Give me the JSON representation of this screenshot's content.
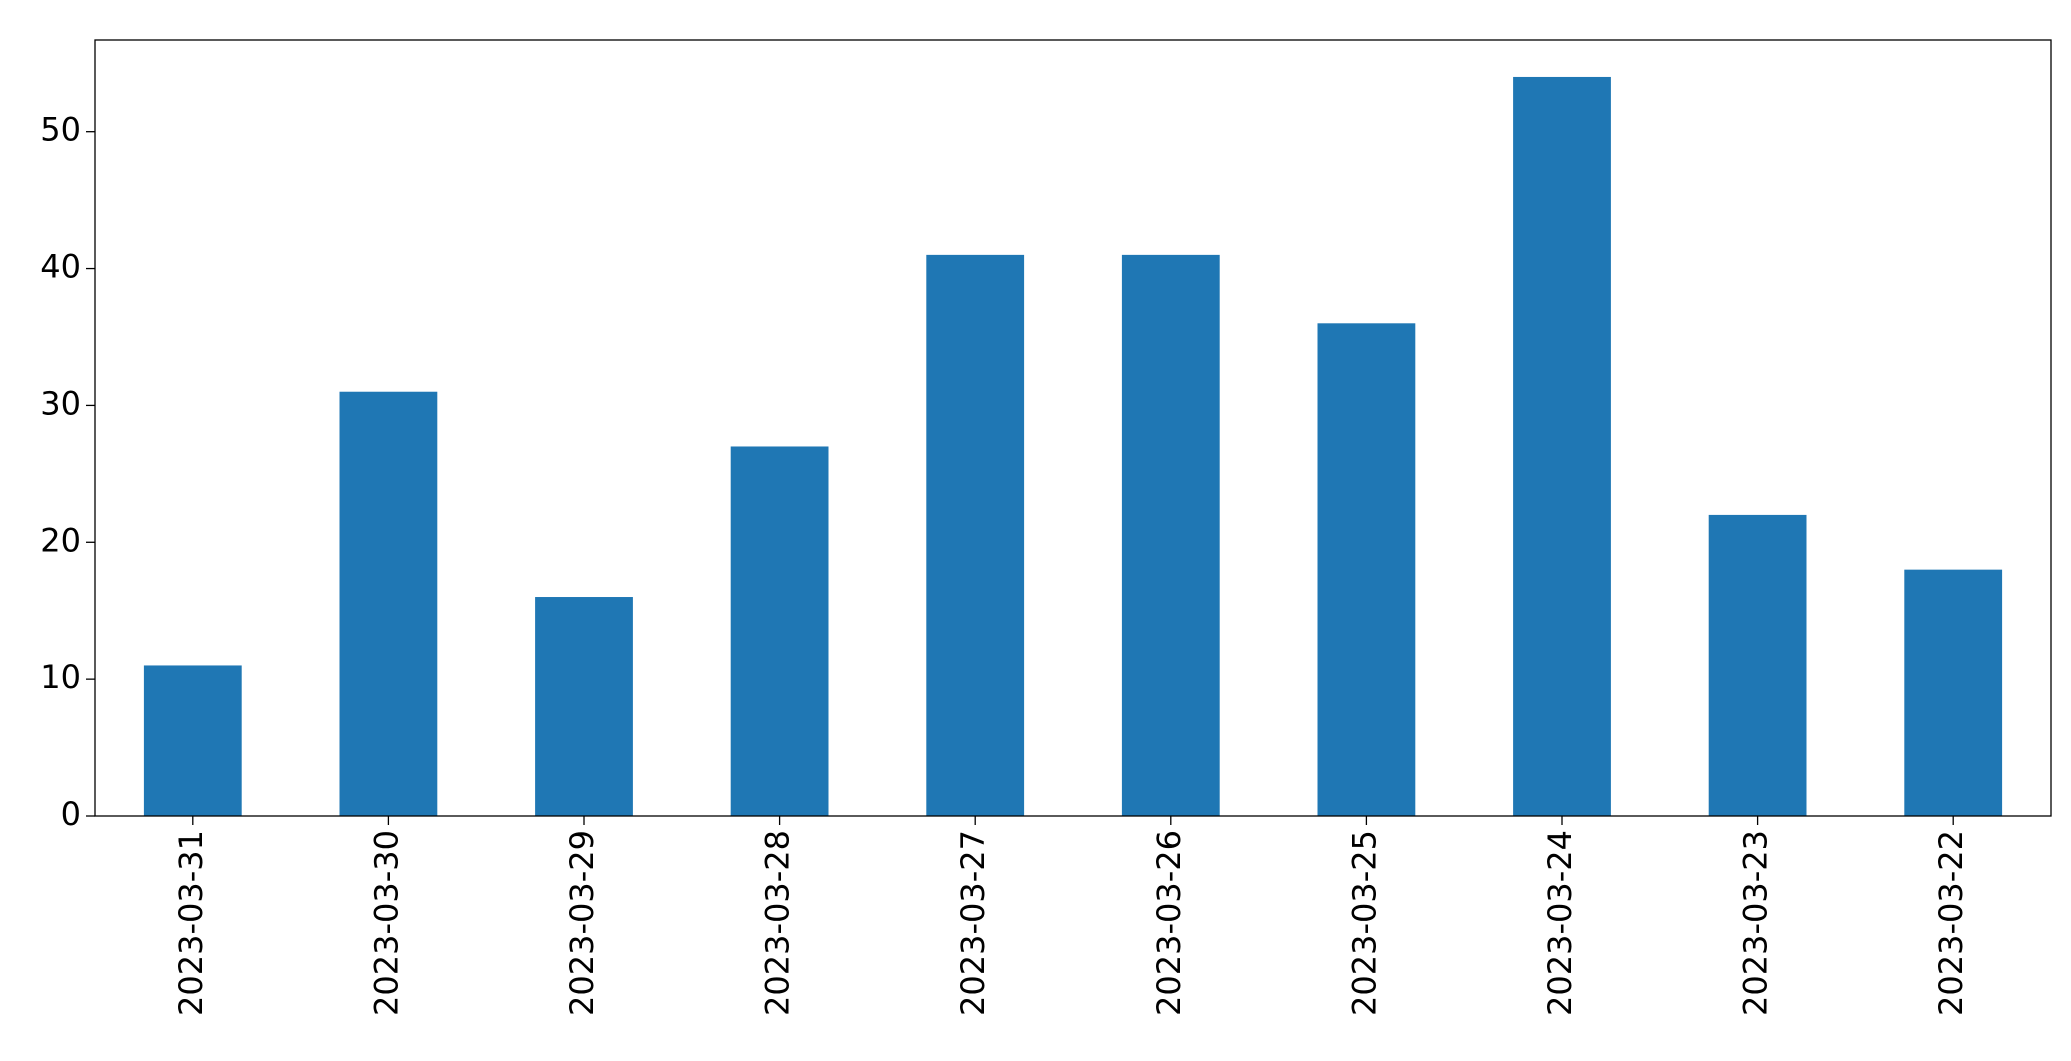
{
  "chart_data": {
    "type": "bar",
    "categories": [
      "2023-03-31",
      "2023-03-30",
      "2023-03-29",
      "2023-03-28",
      "2023-03-27",
      "2023-03-26",
      "2023-03-25",
      "2023-03-24",
      "2023-03-23",
      "2023-03-22"
    ],
    "values": [
      11,
      31,
      16,
      27,
      41,
      41,
      36,
      54,
      22,
      18
    ],
    "color": "#1f77b4",
    "ylim": [
      0,
      56.7
    ],
    "yticks": [
      0,
      10,
      20,
      30,
      40,
      50
    ],
    "grid": false
  }
}
